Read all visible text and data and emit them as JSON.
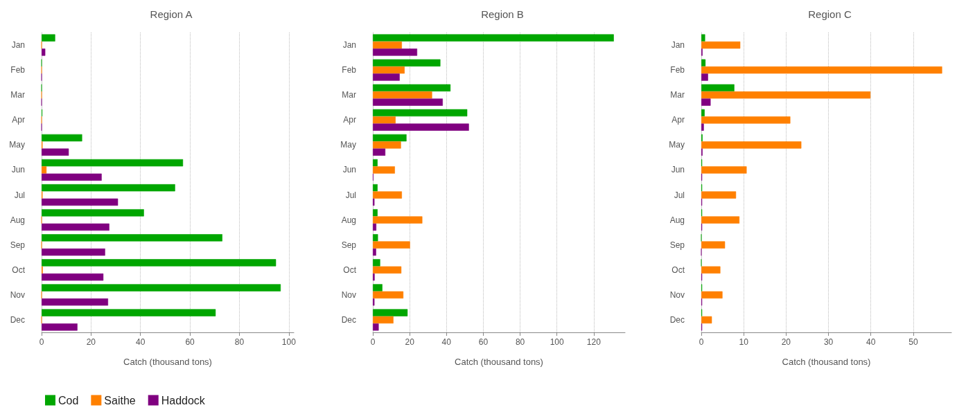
{
  "chart_data": [
    {
      "type": "bar",
      "orientation": "horizontal",
      "title": "Region A",
      "xlabel": "Catch (thousand tons)",
      "categories": [
        "Jan",
        "Feb",
        "Mar",
        "Apr",
        "May",
        "Jun",
        "Jul",
        "Aug",
        "Sep",
        "Oct",
        "Nov",
        "Dec"
      ],
      "xlim": [
        0,
        102
      ],
      "xticks": [
        0,
        20,
        40,
        60,
        80,
        100
      ],
      "grid": "x",
      "legend": "bottom left",
      "series": [
        {
          "name": "Cod",
          "color": "#00a600",
          "values": [
            5.5,
            0,
            0,
            0.3,
            16.4,
            57.2,
            54,
            41.4,
            73.1,
            94.8,
            96.7,
            70.4
          ]
        },
        {
          "name": "Saithe",
          "color": "#ff8000",
          "values": [
            0,
            0,
            0,
            0,
            0.4,
            2,
            0.4,
            0,
            0,
            0.5,
            0,
            0
          ]
        },
        {
          "name": "Haddock",
          "color": "#800080",
          "values": [
            1.5,
            0,
            0,
            0,
            11,
            24.3,
            30.9,
            27.4,
            25.7,
            25,
            26.9,
            14.5
          ]
        }
      ]
    },
    {
      "type": "bar",
      "orientation": "horizontal",
      "title": "Region B",
      "xlabel": "Catch (thousand tons)",
      "categories": [
        "Jan",
        "Feb",
        "Mar",
        "Apr",
        "May",
        "Jun",
        "Jul",
        "Aug",
        "Sep",
        "Oct",
        "Nov",
        "Dec"
      ],
      "xlim": [
        0,
        137
      ],
      "xticks": [
        0,
        20,
        40,
        60,
        80,
        100,
        120
      ],
      "grid": "x",
      "series": [
        {
          "color": "#00a600",
          "values": [
            130.9,
            36.7,
            42.2,
            51.3,
            18.3,
            2.6,
            2.6,
            2.6,
            2.8,
            4,
            5.2,
            18.9
          ]
        },
        {
          "color": "#ff8000",
          "values": [
            15.8,
            17.3,
            32.2,
            12.4,
            15.3,
            12,
            15.8,
            26.9,
            20.2,
            15.5,
            16.6,
            11.2
          ]
        },
        {
          "color": "#800080",
          "values": [
            24.1,
            14.6,
            38,
            52.2,
            6.8,
            0.3,
            0.9,
            1.9,
            1.8,
            1,
            0.9,
            3.2
          ]
        }
      ]
    },
    {
      "type": "bar",
      "orientation": "horizontal",
      "title": "Region C",
      "xlabel": "Catch (thousand tons)",
      "categories": [
        "Jan",
        "Feb",
        "Mar",
        "Apr",
        "May",
        "Jun",
        "Jul",
        "Aug",
        "Sep",
        "Oct",
        "Nov",
        "Dec"
      ],
      "xlim": [
        0,
        59
      ],
      "xticks": [
        0,
        10,
        20,
        30,
        40,
        50
      ],
      "grid": "x",
      "series": [
        {
          "color": "#00a600",
          "values": [
            0.9,
            1,
            7.8,
            0.8,
            0.3,
            0.2,
            0.2,
            0.2,
            0,
            0,
            0.2,
            0.2
          ]
        },
        {
          "color": "#ff8000",
          "values": [
            9.2,
            56.8,
            39.9,
            21,
            23.6,
            10.7,
            8.2,
            9,
            5.6,
            4.5,
            5,
            2.5
          ]
        },
        {
          "color": "#800080",
          "values": [
            0.3,
            1.6,
            2.2,
            0.6,
            0.3,
            0.2,
            0.2,
            0.2,
            0,
            0.2,
            0.2,
            0.2
          ]
        }
      ]
    }
  ]
}
